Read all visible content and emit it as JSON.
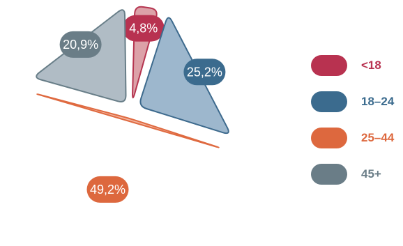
{
  "chart_data": {
    "type": "pie",
    "categories": [
      "<18",
      "18–24",
      "25–44",
      "45+"
    ],
    "values": [
      4.8,
      25.2,
      49.2,
      20.9
    ],
    "labels": [
      "4,8%",
      "25,2%",
      "49,2%",
      "20,9%"
    ],
    "legend": "right"
  },
  "colors": {
    "<18": {
      "fill": "#dca1a8",
      "stroke": "#b53550",
      "label_bg": "#b83250",
      "legend": "#b83250",
      "text": "#b83250"
    },
    "18–24": {
      "fill": "#9db7cd",
      "stroke": "#3d6a8d",
      "label_bg": "#3b6b8e",
      "legend": "#3b6b8e",
      "text": "#3b6b8e"
    },
    "25–44": {
      "fill": "#f3b49f",
      "stroke": "#df6a40",
      "label_bg": "#dd683e",
      "legend": "#dd683e",
      "text": "#dd683e"
    },
    "45+": {
      "fill": "#b0bcc5",
      "stroke": "#687e88",
      "label_bg": "#6a7d87",
      "legend": "#6a7d87",
      "text": "#6a7d87"
    }
  }
}
